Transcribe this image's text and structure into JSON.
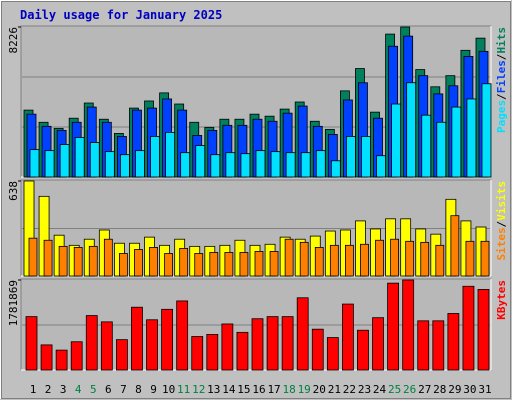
{
  "legend_separator": "/",
  "chart_data": [
    {
      "type": "bar",
      "title": "Daily usage for January 2025",
      "ylim": [
        0,
        8226
      ],
      "yticks": [
        8226
      ],
      "series": [
        {
          "name": "Hits",
          "color": "#00805c",
          "values": [
            3668,
            3001,
            2668,
            3224,
            4057,
            3168,
            2390,
            3779,
            4169,
            4613,
            4002,
            3001,
            2723,
            3168,
            3168,
            3446,
            3335,
            3724,
            4113,
            3057,
            2612,
            4724,
            5947,
            3557,
            7837,
            8226,
            5891,
            4947,
            5558,
            6948,
            7615
          ]
        },
        {
          "name": "Files",
          "color": "#0040ff",
          "values": [
            3446,
            2779,
            2557,
            3001,
            3835,
            3001,
            2223,
            3668,
            3779,
            4280,
            3668,
            2279,
            2557,
            2835,
            2835,
            3168,
            3057,
            3502,
            3891,
            2779,
            2334,
            4224,
            5169,
            3224,
            7170,
            7726,
            5558,
            4558,
            5002,
            6614,
            6892
          ]
        },
        {
          "name": "Pages",
          "color": "#00e0ff",
          "values": [
            1501,
            1445,
            1779,
            2168,
            1890,
            1390,
            1223,
            1445,
            2223,
            2446,
            1334,
            1723,
            1223,
            1334,
            1278,
            1445,
            1390,
            1334,
            1334,
            1445,
            889,
            2223,
            2223,
            1167,
            4002,
            5169,
            3390,
            3001,
            3835,
            4280,
            5113
          ]
        }
      ]
    },
    {
      "type": "bar",
      "ylim": [
        0,
        638
      ],
      "yticks": [
        638
      ],
      "series": [
        {
          "name": "Visits",
          "color": "#ffff00",
          "values": [
            638,
            535,
            274,
            206,
            247,
            309,
            220,
            220,
            261,
            206,
            247,
            199,
            199,
            206,
            240,
            206,
            213,
            261,
            247,
            268,
            302,
            309,
            370,
            316,
            384,
            384,
            316,
            281,
            515,
            370,
            329
          ]
        },
        {
          "name": "Sites",
          "color": "#ff8000",
          "values": [
            254,
            240,
            199,
            192,
            199,
            247,
            151,
            178,
            192,
            151,
            185,
            151,
            158,
            158,
            158,
            165,
            165,
            247,
            226,
            192,
            206,
            206,
            213,
            240,
            247,
            233,
            226,
            206,
            405,
            233,
            233
          ]
        }
      ]
    },
    {
      "type": "bar",
      "ylim": [
        0,
        1781869
      ],
      "yticks": [
        1781869
      ],
      "categories": [
        1,
        2,
        3,
        4,
        5,
        6,
        7,
        8,
        9,
        10,
        11,
        12,
        13,
        14,
        15,
        16,
        17,
        18,
        19,
        20,
        21,
        22,
        23,
        24,
        25,
        26,
        27,
        28,
        29,
        30,
        31
      ],
      "highlight_categories": [
        4,
        5,
        11,
        12,
        18,
        19,
        25,
        26
      ],
      "highlight_color": "#008040",
      "series": [
        {
          "name": "KBytes",
          "color": "#ff0000",
          "values": [
            1056720,
            497280,
            393680,
            559440,
            1077440,
            953120,
            600880,
            1243200,
            994560,
            1201760,
            1367520,
            663040,
            704480,
            911680,
            745920,
            1015280,
            1056720,
            1056720,
            1429680,
            808080,
            642320,
            1305360,
            787360,
            1036000,
            1719760,
            1781869,
            973840,
            973840,
            1118880,
            1657600,
            1595440
          ]
        }
      ]
    }
  ]
}
